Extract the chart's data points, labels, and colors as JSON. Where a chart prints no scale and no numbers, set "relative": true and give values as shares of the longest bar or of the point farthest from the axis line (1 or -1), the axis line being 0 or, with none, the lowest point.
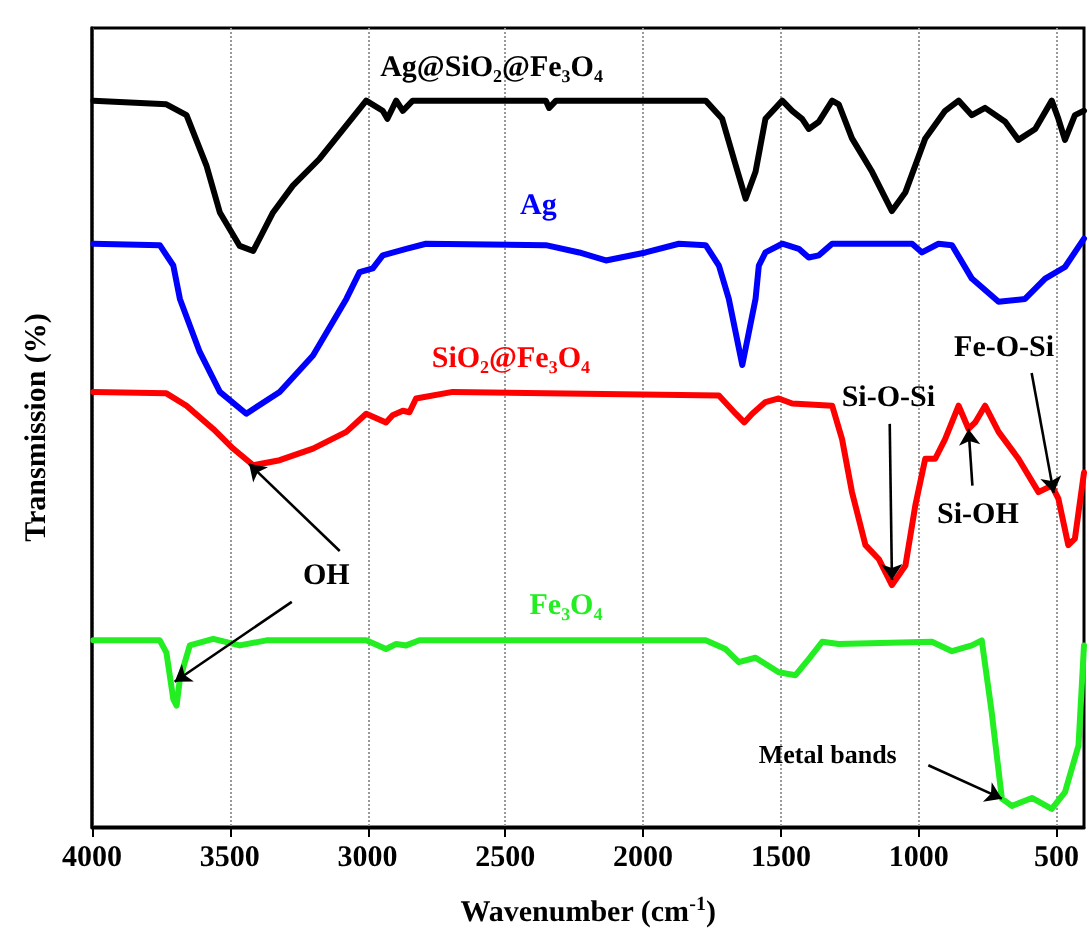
{
  "chart_data": {
    "type": "line",
    "relative": true,
    "xlabel": "Wavenumber (cm$^{-1}$)",
    "ylabel": "Transmission (%)",
    "xlim": [
      4000,
      400
    ],
    "xticks": [
      4000,
      3500,
      3000,
      2500,
      2000,
      1500,
      1000,
      500
    ],
    "grid": "x",
    "legend": false,
    "marker": "none",
    "line_style": "solid",
    "series": [
      {
        "name": "Ag@SiO₂@Fe₃O₄",
        "color": "#000000",
        "x": [
          3995,
          3730,
          3657,
          3585,
          3536,
          3464,
          3415,
          3343,
          3271,
          3174,
          3077,
          3005,
          2945,
          2928,
          2896,
          2872,
          2836,
          2353,
          2341,
          2316,
          1773,
          1713,
          1664,
          1628,
          1592,
          1556,
          1495,
          1459,
          1423,
          1399,
          1362,
          1314,
          1290,
          1242,
          1169,
          1097,
          1048,
          976,
          904,
          855,
          807,
          759,
          686,
          638,
          577,
          517,
          493,
          469,
          433,
          400
        ],
        "values": [
          1.0,
          0.995,
          0.98,
          0.911,
          0.846,
          0.8,
          0.793,
          0.846,
          0.883,
          0.92,
          0.966,
          1.0,
          0.986,
          0.975,
          1.0,
          0.986,
          1.0,
          1.0,
          0.99,
          1.0,
          1.0,
          0.975,
          0.911,
          0.865,
          0.902,
          0.975,
          1.0,
          0.986,
          0.975,
          0.961,
          0.971,
          1.0,
          0.995,
          0.948,
          0.902,
          0.848,
          0.874,
          0.948,
          0.986,
          1.0,
          0.98,
          0.99,
          0.971,
          0.946,
          0.961,
          1.0,
          0.975,
          0.946,
          0.98,
          0.986
        ]
      },
      {
        "name": "Ag",
        "color": "#0000ff",
        "x": [
          3995,
          3754,
          3705,
          3681,
          3609,
          3536,
          3440,
          3319,
          3198,
          3077,
          3029,
          2981,
          2945,
          2860,
          2788,
          2353,
          2232,
          2135,
          1991,
          1870,
          1773,
          1725,
          1689,
          1640,
          1592,
          1580,
          1556,
          1495,
          1435,
          1399,
          1362,
          1314,
          1024,
          988,
          928,
          879,
          807,
          710,
          614,
          541,
          469,
          400
        ],
        "values": [
          0.803,
          0.801,
          0.773,
          0.727,
          0.654,
          0.599,
          0.569,
          0.599,
          0.649,
          0.727,
          0.764,
          0.769,
          0.787,
          0.796,
          0.803,
          0.801,
          0.791,
          0.78,
          0.791,
          0.803,
          0.801,
          0.773,
          0.727,
          0.636,
          0.727,
          0.773,
          0.791,
          0.803,
          0.796,
          0.784,
          0.787,
          0.803,
          0.803,
          0.791,
          0.803,
          0.801,
          0.755,
          0.723,
          0.727,
          0.755,
          0.771,
          0.81
        ]
      },
      {
        "name": "SiO₂@Fe₃O₄",
        "color": "#ff0000",
        "x": [
          3995,
          3730,
          3657,
          3560,
          3488,
          3415,
          3319,
          3198,
          3077,
          3005,
          2933,
          2909,
          2872,
          2848,
          2824,
          2691,
          1725,
          1664,
          1633,
          1604,
          1556,
          1508,
          1459,
          1314,
          1278,
          1242,
          1193,
          1145,
          1097,
          1048,
          1012,
          976,
          940,
          904,
          855,
          819,
          795,
          759,
          710,
          638,
          565,
          517,
          493,
          457,
          433,
          400
        ],
        "values": [
          0.599,
          0.597,
          0.58,
          0.548,
          0.521,
          0.498,
          0.505,
          0.521,
          0.544,
          0.569,
          0.557,
          0.567,
          0.573,
          0.571,
          0.59,
          0.599,
          0.594,
          0.569,
          0.557,
          0.569,
          0.585,
          0.59,
          0.583,
          0.58,
          0.534,
          0.461,
          0.388,
          0.369,
          0.333,
          0.36,
          0.443,
          0.507,
          0.507,
          0.534,
          0.58,
          0.548,
          0.557,
          0.58,
          0.544,
          0.507,
          0.461,
          0.47,
          0.452,
          0.388,
          0.397,
          0.488
        ]
      },
      {
        "name": "Fe₃O₄",
        "color": "#22ee22",
        "x": [
          3995,
          3754,
          3730,
          3705,
          3693,
          3681,
          3645,
          3560,
          3464,
          3367,
          3005,
          2933,
          2896,
          2860,
          2812,
          1773,
          1701,
          1653,
          1592,
          1508,
          1447,
          1399,
          1350,
          1290,
          952,
          879,
          807,
          771,
          735,
          698,
          662,
          589,
          517,
          469,
          420,
          400
        ],
        "values": [
          0.257,
          0.257,
          0.24,
          0.176,
          0.167,
          0.204,
          0.25,
          0.259,
          0.25,
          0.257,
          0.257,
          0.245,
          0.252,
          0.25,
          0.257,
          0.257,
          0.245,
          0.227,
          0.233,
          0.213,
          0.209,
          0.231,
          0.255,
          0.252,
          0.255,
          0.242,
          0.25,
          0.257,
          0.158,
          0.039,
          0.029,
          0.04,
          0.025,
          0.048,
          0.112,
          0.25
        ]
      }
    ],
    "annotations": [
      {
        "text": "OH",
        "x": 3430,
        "y": 0.5
      },
      {
        "text": "Si-O-Si",
        "x": 1097,
        "y": 0.34
      },
      {
        "text": "Si-OH",
        "x": 819,
        "y": 0.548
      },
      {
        "text": "Fe-O-Si",
        "x": 510,
        "y": 0.46
      },
      {
        "text": "Metal bands",
        "x": 698,
        "y": 0.039
      }
    ]
  }
}
